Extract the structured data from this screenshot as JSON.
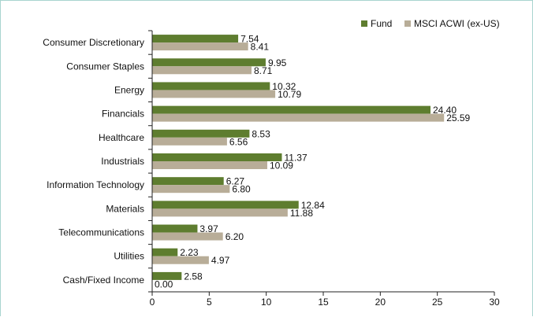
{
  "chart_data": {
    "type": "bar",
    "orientation": "horizontal",
    "title": "",
    "xlabel": "",
    "ylabel": "",
    "categories": [
      "Consumer Discretionary",
      "Consumer Staples",
      "Energy",
      "Financials",
      "Healthcare",
      "Industrials",
      "Information Technology",
      "Materials",
      "Telecommunications",
      "Utilities",
      "Cash/Fixed Income"
    ],
    "series": [
      {
        "name": "Fund",
        "color": "#5e7d2f",
        "values": [
          7.54,
          9.95,
          10.32,
          24.4,
          8.53,
          11.37,
          6.27,
          12.84,
          3.97,
          2.23,
          2.58
        ]
      },
      {
        "name": "MSCI ACWI (ex-US)",
        "color": "#b8ad98",
        "values": [
          8.41,
          8.71,
          10.79,
          25.59,
          6.56,
          10.09,
          6.8,
          11.88,
          6.2,
          4.97,
          0.0
        ]
      }
    ],
    "xlim": [
      0,
      30
    ],
    "xticks": [
      0,
      5,
      10,
      15,
      20,
      25,
      30
    ],
    "value_decimals": 2,
    "legend_position": "top-right",
    "grid": false
  }
}
